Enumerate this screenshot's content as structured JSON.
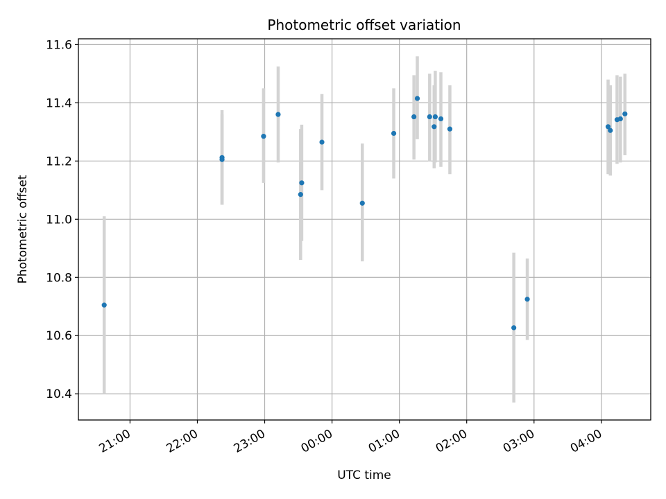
{
  "chart_data": {
    "type": "scatter",
    "title": "Photometric offset variation",
    "xlabel": "UTC time",
    "ylabel": "Photometric offset",
    "xlim": [
      "20:14",
      "04:44"
    ],
    "ylim": [
      10.31,
      11.62
    ],
    "x_ticks": [
      "21:00",
      "22:00",
      "23:00",
      "00:00",
      "01:00",
      "02:00",
      "03:00",
      "04:00"
    ],
    "y_ticks": [
      10.4,
      10.6,
      10.8,
      11.0,
      11.2,
      11.4,
      11.6
    ],
    "y_tick_labels": [
      "10.4",
      "10.6",
      "10.8",
      "11.0",
      "11.2",
      "11.4",
      "11.6"
    ],
    "grid": true,
    "point_color": "#1f77b4",
    "errorbar_color": "#d3d3d3",
    "points": [
      {
        "x": "20:37",
        "y": 10.705,
        "lo": 10.4,
        "hi": 11.01
      },
      {
        "x": "22:22",
        "y": 11.212,
        "lo": 11.05,
        "hi": 11.375
      },
      {
        "x": "22:22",
        "y": 11.205,
        "lo": 11.05,
        "hi": 11.36
      },
      {
        "x": "22:59",
        "y": 11.285,
        "lo": 11.125,
        "hi": 11.45
      },
      {
        "x": "23:12",
        "y": 11.36,
        "lo": 11.195,
        "hi": 11.525
      },
      {
        "x": "23:32",
        "y": 11.085,
        "lo": 10.86,
        "hi": 11.31
      },
      {
        "x": "23:33",
        "y": 11.125,
        "lo": 10.925,
        "hi": 11.325
      },
      {
        "x": "23:51",
        "y": 11.265,
        "lo": 11.1,
        "hi": 11.43
      },
      {
        "x": "00:27",
        "y": 11.055,
        "lo": 10.855,
        "hi": 11.26
      },
      {
        "x": "00:55",
        "y": 11.295,
        "lo": 11.14,
        "hi": 11.45
      },
      {
        "x": "01:13",
        "y": 11.352,
        "lo": 11.205,
        "hi": 11.495
      },
      {
        "x": "01:16",
        "y": 11.415,
        "lo": 11.275,
        "hi": 11.56
      },
      {
        "x": "01:27",
        "y": 11.352,
        "lo": 11.2,
        "hi": 11.5
      },
      {
        "x": "01:31",
        "y": 11.318,
        "lo": 11.175,
        "hi": 11.46
      },
      {
        "x": "01:32",
        "y": 11.352,
        "lo": 11.195,
        "hi": 11.51
      },
      {
        "x": "01:37",
        "y": 11.345,
        "lo": 11.18,
        "hi": 11.505
      },
      {
        "x": "01:45",
        "y": 11.31,
        "lo": 11.155,
        "hi": 11.46
      },
      {
        "x": "02:42",
        "y": 10.627,
        "lo": 10.37,
        "hi": 10.885
      },
      {
        "x": "02:54",
        "y": 10.725,
        "lo": 10.585,
        "hi": 10.865
      },
      {
        "x": "04:06",
        "y": 11.318,
        "lo": 11.155,
        "hi": 11.48
      },
      {
        "x": "04:08",
        "y": 11.305,
        "lo": 11.15,
        "hi": 11.46
      },
      {
        "x": "04:14",
        "y": 11.342,
        "lo": 11.19,
        "hi": 11.495
      },
      {
        "x": "04:17",
        "y": 11.345,
        "lo": 11.195,
        "hi": 11.49
      },
      {
        "x": "04:21",
        "y": 11.362,
        "lo": 11.22,
        "hi": 11.5
      }
    ]
  }
}
